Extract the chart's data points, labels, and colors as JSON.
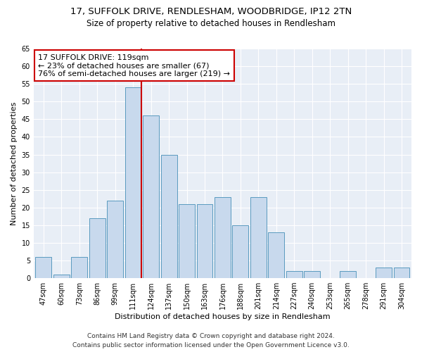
{
  "title_line1": "17, SUFFOLK DRIVE, RENDLESHAM, WOODBRIDGE, IP12 2TN",
  "title_line2": "Size of property relative to detached houses in Rendlesham",
  "xlabel": "Distribution of detached houses by size in Rendlesham",
  "ylabel": "Number of detached properties",
  "categories": [
    "47sqm",
    "60sqm",
    "73sqm",
    "86sqm",
    "99sqm",
    "111sqm",
    "124sqm",
    "137sqm",
    "150sqm",
    "163sqm",
    "176sqm",
    "188sqm",
    "201sqm",
    "214sqm",
    "227sqm",
    "240sqm",
    "253sqm",
    "265sqm",
    "278sqm",
    "291sqm",
    "304sqm"
  ],
  "values": [
    6,
    1,
    6,
    17,
    22,
    54,
    46,
    35,
    21,
    21,
    23,
    15,
    23,
    13,
    2,
    2,
    0,
    2,
    0,
    3,
    3
  ],
  "bar_color": "#c8d9ed",
  "bar_edge_color": "#5a9abf",
  "vline_index": 5,
  "vline_color": "#cc0000",
  "annotation_line1": "17 SUFFOLK DRIVE: 119sqm",
  "annotation_line2": "← 23% of detached houses are smaller (67)",
  "annotation_line3": "76% of semi-detached houses are larger (219) →",
  "annotation_box_color": "#ffffff",
  "annotation_box_edge": "#cc0000",
  "ylim": [
    0,
    65
  ],
  "yticks": [
    0,
    5,
    10,
    15,
    20,
    25,
    30,
    35,
    40,
    45,
    50,
    55,
    60,
    65
  ],
  "bg_color": "#e8eef6",
  "footer_line1": "Contains HM Land Registry data © Crown copyright and database right 2024.",
  "footer_line2": "Contains public sector information licensed under the Open Government Licence v3.0.",
  "title_fontsize": 9.5,
  "subtitle_fontsize": 8.5,
  "axis_label_fontsize": 8,
  "tick_fontsize": 7,
  "annotation_fontsize": 8,
  "footer_fontsize": 6.5
}
